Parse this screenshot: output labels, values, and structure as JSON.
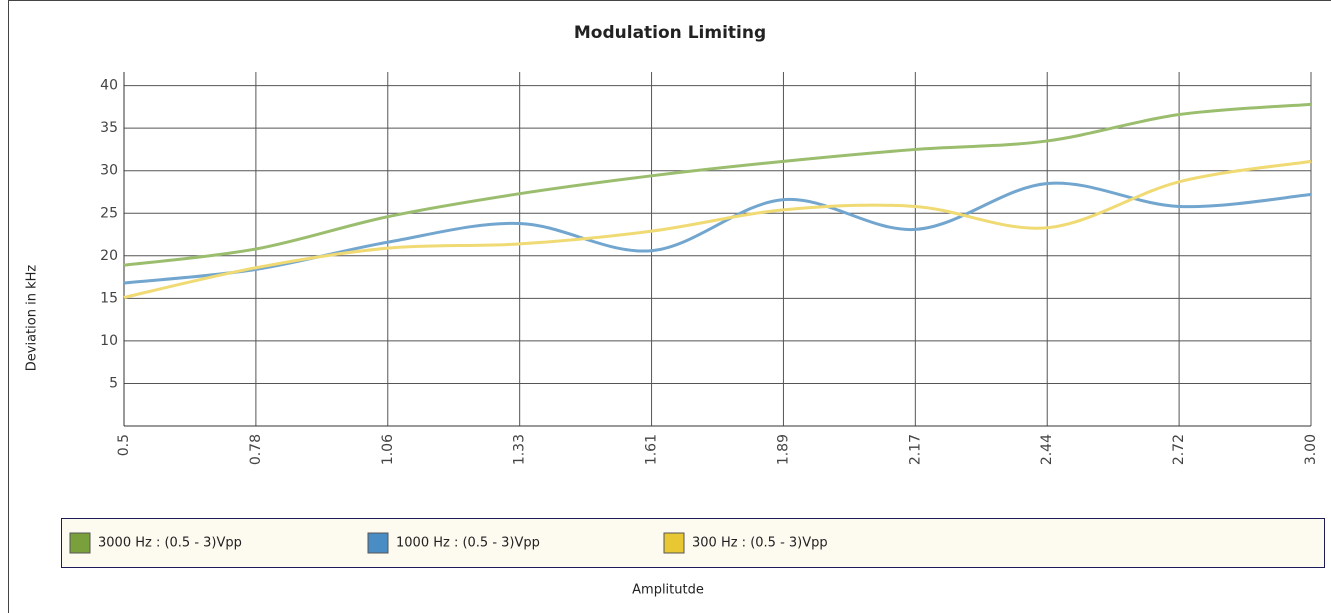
{
  "chart_data": {
    "type": "line",
    "title": "Modulation Limiting",
    "x_label": "Amplitutde",
    "y_label": "Deviation in kHz",
    "categories": [
      "0.5",
      "0.78",
      "1.06",
      "1.33",
      "1.61",
      "1.89",
      "2.17",
      "2.44",
      "2.72",
      "3.00"
    ],
    "series": [
      {
        "name": "3000 Hz : (0.5 - 3)Vpp",
        "color": "#9bbd6e",
        "swatch": "#7aa03c",
        "values": [
          18.9,
          20.8,
          24.6,
          27.3,
          29.4,
          31.1,
          32.5,
          33.5,
          36.6,
          37.8
        ]
      },
      {
        "name": "1000 Hz : (0.5 - 3)Vpp",
        "color": "#72a6cf",
        "swatch": "#4a8cc4",
        "values": [
          16.8,
          18.4,
          21.6,
          23.8,
          20.6,
          26.6,
          23.1,
          28.5,
          25.8,
          27.2
        ]
      },
      {
        "name": "300 Hz : (0.5 - 3)Vpp",
        "color": "#f0da74",
        "swatch": "#e8c832",
        "values": [
          15.1,
          18.6,
          20.9,
          21.4,
          22.9,
          25.4,
          25.8,
          23.3,
          28.7,
          31.1
        ]
      }
    ],
    "ylim": [
      0,
      41.6
    ],
    "yticks": [
      5,
      10,
      15,
      20,
      25,
      30,
      35,
      40
    ],
    "grid": true,
    "legend": "bottom"
  }
}
